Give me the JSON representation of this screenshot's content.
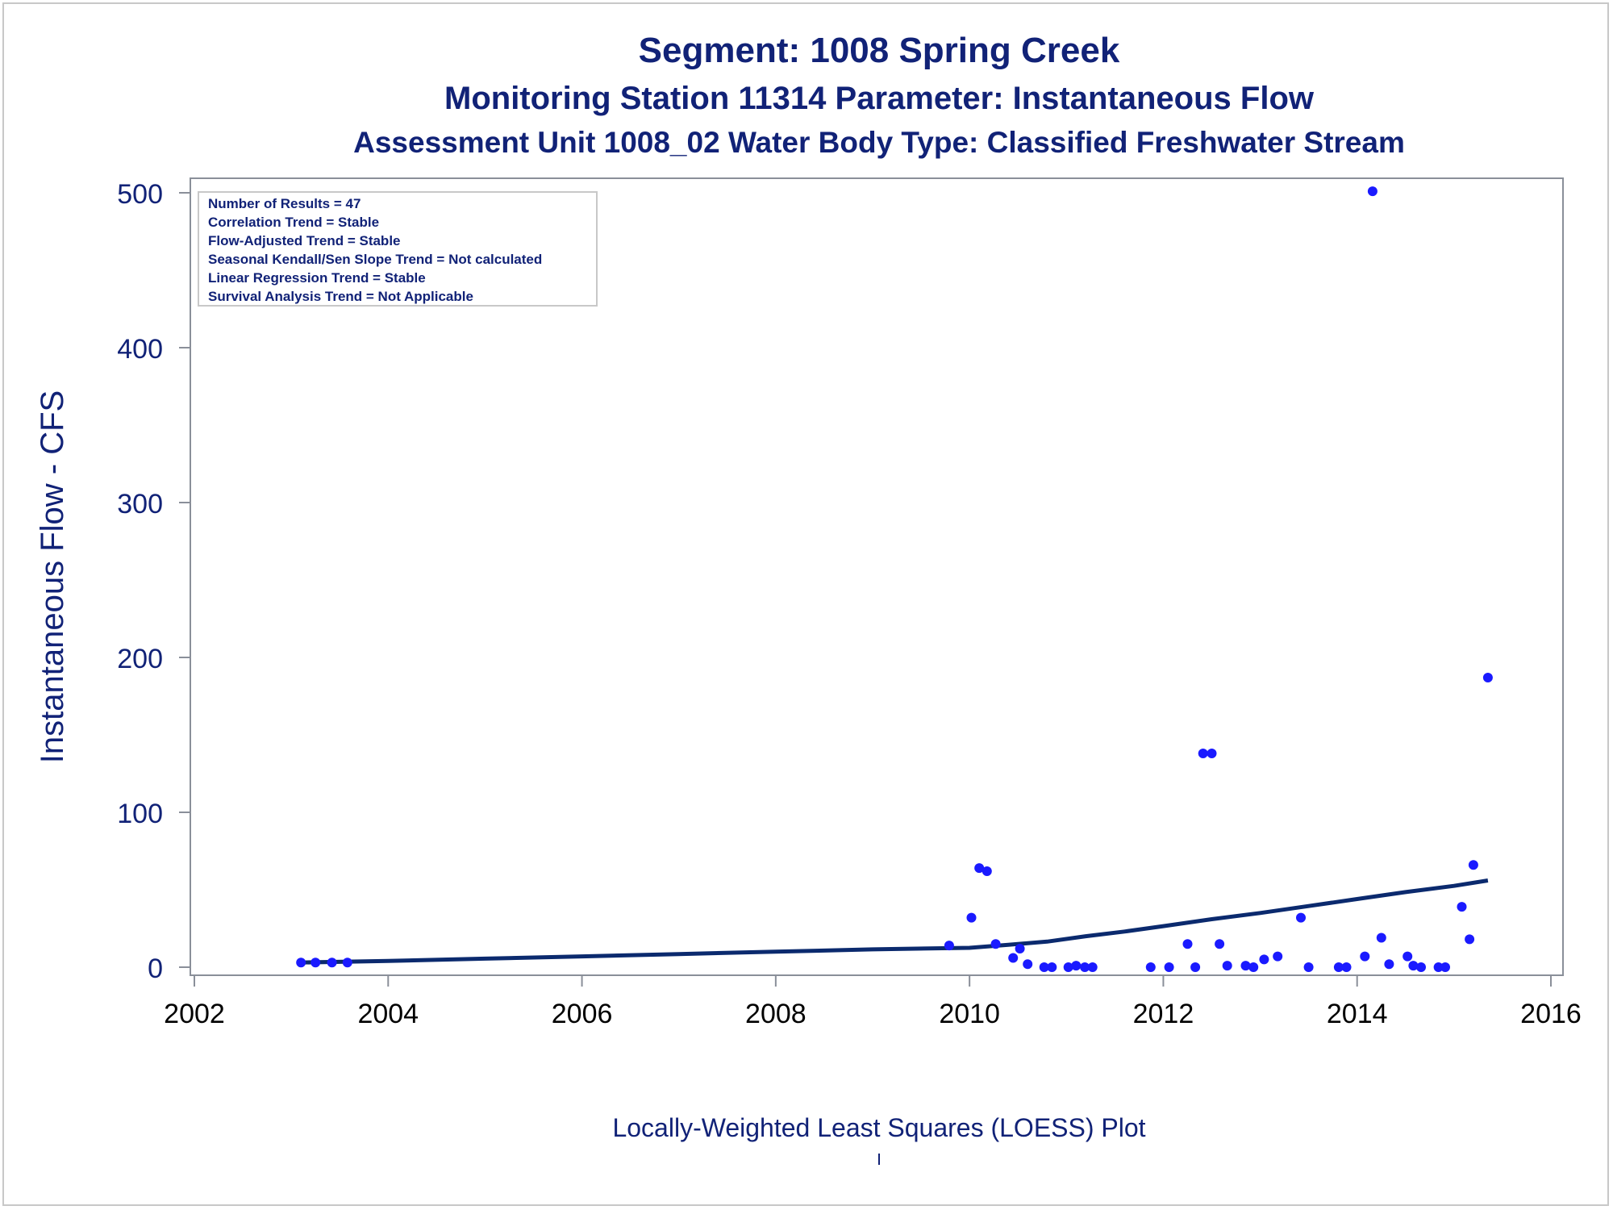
{
  "titles": {
    "line1": "Segment: 1008  Spring Creek",
    "line2": "Monitoring Station 11314 Parameter: Instantaneous Flow",
    "line3": "Assessment Unit 1008_02   Water Body Type: Classified Freshwater Stream"
  },
  "caption": "Locally-Weighted Least Squares (LOESS) Plot",
  "stats_box": [
    "Number of Results = 47",
    "Correlation Trend = Stable",
    "Flow-Adjusted Trend = Stable",
    "Seasonal Kendall/Sen Slope Trend = Not calculated",
    "Linear Regression Trend = Stable",
    "Survival Analysis Trend = Not Applicable"
  ],
  "colors": {
    "points": "#1a1aff",
    "line": "#0b2a6e",
    "text": "#112277"
  },
  "chart_data": {
    "type": "scatter",
    "ylabel": "Instantaneous Flow - CFS",
    "xlabel": "",
    "xlim": [
      2002,
      2016
    ],
    "ylim": [
      0,
      500
    ],
    "xticks": [
      2002,
      2004,
      2006,
      2008,
      2010,
      2012,
      2014,
      2016
    ],
    "yticks": [
      0,
      100,
      200,
      300,
      400,
      500
    ],
    "grid": false,
    "points": [
      {
        "x": 2003.1,
        "y": 3
      },
      {
        "x": 2003.25,
        "y": 3
      },
      {
        "x": 2003.42,
        "y": 3
      },
      {
        "x": 2003.58,
        "y": 3
      },
      {
        "x": 2009.79,
        "y": 14
      },
      {
        "x": 2010.02,
        "y": 32
      },
      {
        "x": 2010.1,
        "y": 64
      },
      {
        "x": 2010.18,
        "y": 62
      },
      {
        "x": 2010.27,
        "y": 15
      },
      {
        "x": 2010.45,
        "y": 6
      },
      {
        "x": 2010.52,
        "y": 12
      },
      {
        "x": 2010.6,
        "y": 2
      },
      {
        "x": 2010.77,
        "y": 0
      },
      {
        "x": 2010.85,
        "y": 0
      },
      {
        "x": 2011.02,
        "y": 0
      },
      {
        "x": 2011.1,
        "y": 1
      },
      {
        "x": 2011.19,
        "y": 0
      },
      {
        "x": 2011.27,
        "y": 0
      },
      {
        "x": 2011.87,
        "y": 0
      },
      {
        "x": 2012.06,
        "y": 0
      },
      {
        "x": 2012.25,
        "y": 15
      },
      {
        "x": 2012.33,
        "y": 0
      },
      {
        "x": 2012.41,
        "y": 138
      },
      {
        "x": 2012.5,
        "y": 138
      },
      {
        "x": 2012.58,
        "y": 15
      },
      {
        "x": 2012.66,
        "y": 1
      },
      {
        "x": 2012.85,
        "y": 1
      },
      {
        "x": 2012.93,
        "y": 0
      },
      {
        "x": 2013.04,
        "y": 5
      },
      {
        "x": 2013.18,
        "y": 7
      },
      {
        "x": 2013.42,
        "y": 32
      },
      {
        "x": 2013.5,
        "y": 0
      },
      {
        "x": 2013.81,
        "y": 0
      },
      {
        "x": 2013.89,
        "y": 0
      },
      {
        "x": 2014.08,
        "y": 7
      },
      {
        "x": 2014.16,
        "y": 501
      },
      {
        "x": 2014.25,
        "y": 19
      },
      {
        "x": 2014.33,
        "y": 2
      },
      {
        "x": 2014.52,
        "y": 7
      },
      {
        "x": 2014.58,
        "y": 1
      },
      {
        "x": 2014.66,
        "y": 0
      },
      {
        "x": 2014.84,
        "y": 0
      },
      {
        "x": 2014.91,
        "y": 0
      },
      {
        "x": 2015.08,
        "y": 39
      },
      {
        "x": 2015.16,
        "y": 18
      },
      {
        "x": 2015.2,
        "y": 66
      },
      {
        "x": 2015.35,
        "y": 187
      }
    ],
    "loess": [
      {
        "x": 2003.1,
        "y": 3
      },
      {
        "x": 2004.0,
        "y": 4
      },
      {
        "x": 2005.0,
        "y": 5.5
      },
      {
        "x": 2006.0,
        "y": 7
      },
      {
        "x": 2007.0,
        "y": 8.5
      },
      {
        "x": 2008.0,
        "y": 10
      },
      {
        "x": 2009.0,
        "y": 11.5
      },
      {
        "x": 2010.0,
        "y": 12.5
      },
      {
        "x": 2010.4,
        "y": 14.5
      },
      {
        "x": 2010.8,
        "y": 16.5
      },
      {
        "x": 2011.2,
        "y": 20
      },
      {
        "x": 2011.6,
        "y": 23
      },
      {
        "x": 2012.0,
        "y": 26.5
      },
      {
        "x": 2012.5,
        "y": 31
      },
      {
        "x": 2013.0,
        "y": 35
      },
      {
        "x": 2013.5,
        "y": 39.5
      },
      {
        "x": 2014.0,
        "y": 44
      },
      {
        "x": 2014.5,
        "y": 48.5
      },
      {
        "x": 2015.0,
        "y": 52.5
      },
      {
        "x": 2015.35,
        "y": 56
      }
    ]
  }
}
